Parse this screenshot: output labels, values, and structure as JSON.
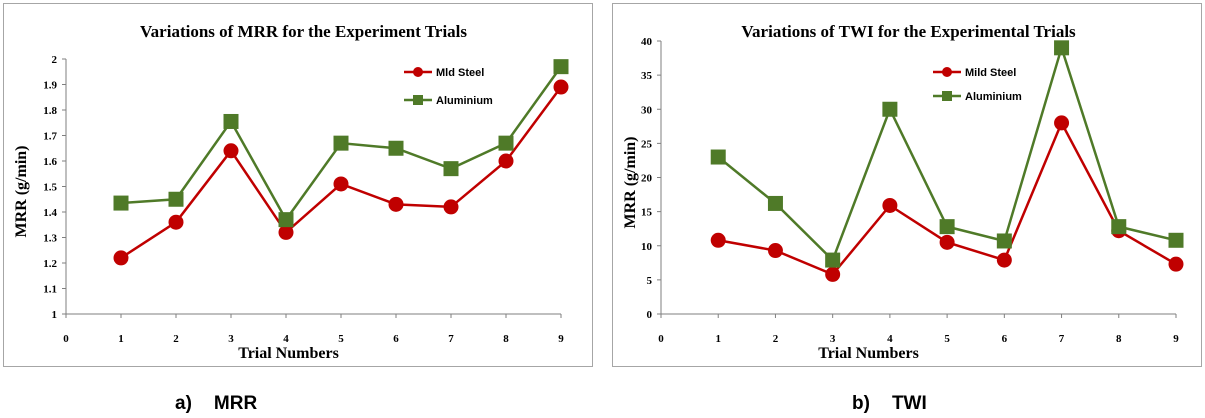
{
  "chart_data": [
    {
      "type": "line",
      "title": "Variations of MRR for the Experiment Trials",
      "xlabel": "Trial Numbers",
      "ylabel": "MRR      (g/min)",
      "x": [
        1,
        2,
        3,
        4,
        5,
        6,
        7,
        8,
        9
      ],
      "xlim": [
        0,
        9
      ],
      "ylim": [
        1,
        2
      ],
      "yticks": [
        "1",
        "1.1",
        "1.2",
        "1.3",
        "1.4",
        "1.5",
        "1.6",
        "1.7",
        "1.8",
        "1.9",
        "2"
      ],
      "ytick_values": [
        1,
        1.1,
        1.2,
        1.3,
        1.4,
        1.5,
        1.6,
        1.7,
        1.8,
        1.9,
        2
      ],
      "xticks": [
        "0",
        "1",
        "2",
        "3",
        "4",
        "5",
        "6",
        "7",
        "8",
        "9"
      ],
      "grid": false,
      "legend_position": "top-right",
      "series": [
        {
          "name": "Mld Steel",
          "color": "#c00000",
          "marker": "circle",
          "values": [
            1.22,
            1.36,
            1.64,
            1.32,
            1.51,
            1.43,
            1.42,
            1.6,
            1.89
          ]
        },
        {
          "name": "Aluminium",
          "color": "#4f7a28",
          "marker": "square",
          "values": [
            1.435,
            1.45,
            1.755,
            1.37,
            1.67,
            1.65,
            1.57,
            1.67,
            1.97
          ]
        }
      ]
    },
    {
      "type": "line",
      "title": "Variations of TWI for the Experimental Trials",
      "xlabel": "Trial Numbers",
      "ylabel": "MRR      (g/min)",
      "x": [
        1,
        2,
        3,
        4,
        5,
        6,
        7,
        8,
        9
      ],
      "xlim": [
        0,
        9
      ],
      "ylim": [
        0,
        40
      ],
      "yticks": [
        "0",
        "5",
        "10",
        "15",
        "20",
        "25",
        "30",
        "35",
        "40"
      ],
      "ytick_values": [
        0,
        5,
        10,
        15,
        20,
        25,
        30,
        35,
        40
      ],
      "xticks": [
        "0",
        "1",
        "2",
        "3",
        "4",
        "5",
        "6",
        "7",
        "8",
        "9"
      ],
      "grid": false,
      "legend_position": "top-right",
      "series": [
        {
          "name": "Mild Steel",
          "color": "#c00000",
          "marker": "circle",
          "values": [
            10.8,
            9.3,
            5.8,
            15.9,
            10.5,
            7.9,
            28.0,
            12.2,
            7.3
          ]
        },
        {
          "name": "Aluminium",
          "color": "#4f7a28",
          "marker": "square",
          "values": [
            23.0,
            16.2,
            7.9,
            30.0,
            12.8,
            10.7,
            39.0,
            12.8,
            10.8
          ]
        }
      ]
    }
  ],
  "captions": [
    {
      "letter": "a)",
      "text": "MRR"
    },
    {
      "letter": "b)",
      "text": "TWI"
    }
  ]
}
